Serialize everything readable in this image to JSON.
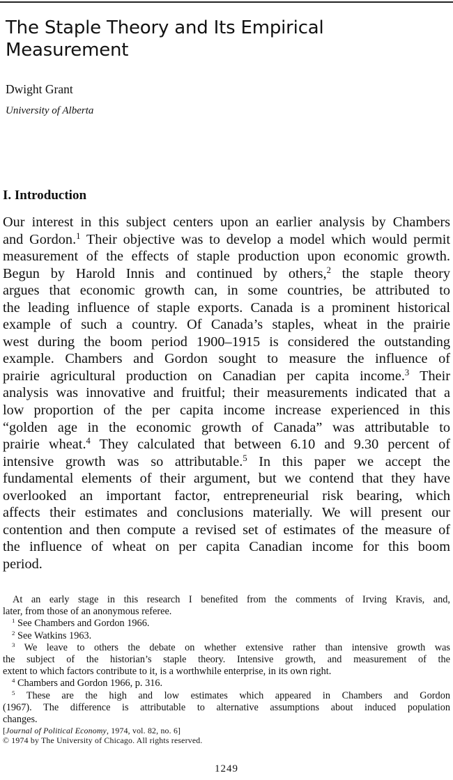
{
  "article": {
    "title_lines": [
      "The Staple Theory and Its Empirical",
      "Measurement"
    ],
    "author": "Dwight Grant",
    "affiliation": "University of Alberta"
  },
  "section": {
    "heading": "I. Introduction",
    "body_lines": [
      "Our interest in this subject centers upon an earlier analysis by Chambers",
      "and Gordon.",
      "1",
      " Their objective was to develop a model which would permit",
      "measurement of the effects of staple production upon economic growth.",
      "Begun by Harold Innis and continued by others,",
      "2",
      " the staple theory",
      "argues that economic growth can, in some countries, be attributed to",
      "the leading influence of staple exports. Canada is a prominent historical",
      "example of such a country. Of Canada’s staples, wheat in the prairie",
      "west during the boom period 1900–1915 is considered the outstanding",
      "example. Chambers and Gordon sought to measure the influence of",
      "prairie agricultural production on Canadian per capita income.",
      "3",
      " Their",
      "analysis was innovative and fruitful; their measurements indicated that a",
      "low proportion of the per capita income increase experienced in this",
      "“golden age in the economic growth of Canada” was attributable to",
      "prairie wheat.",
      "4",
      " They calculated that between 6.10 and 9.30 percent of",
      "intensive growth was so attributable.",
      "5",
      " In this paper we accept the",
      "fundamental elements of their argument, but we contend that they have",
      "overlooked an important factor, entrepreneurial risk bearing, which",
      "affects their estimates and conclusions materially. We will present our",
      "contention and then compute a revised set of estimates of the measure of",
      "the influence of wheat on per capita Canadian income for this boom",
      "period."
    ]
  },
  "footnotes": {
    "ack_lines": [
      "At an early stage in this research I benefited from the comments of Irving Kravis, and,",
      "later, from those of an anonymous referee."
    ],
    "notes": [
      {
        "mark": "1",
        "lines": [
          " See Chambers and Gordon 1966."
        ]
      },
      {
        "mark": "2",
        "lines": [
          " See Watkins 1963."
        ]
      },
      {
        "mark": "3",
        "lines": [
          " We leave to others the debate on whether extensive rather than intensive growth was",
          "the subject of the historian’s staple theory. Intensive growth, and measurement of the",
          "extent to which factors contribute to it, is a worthwhile enterprise, in its own right."
        ]
      },
      {
        "mark": "4",
        "lines": [
          " Chambers and Gordon 1966, p. 316."
        ]
      },
      {
        "mark": "5",
        "lines": [
          " These are the high and low estimates which appeared in Chambers and Gordon",
          "(1967). The difference is attributable to alternative assumptions about induced population",
          "changes."
        ]
      }
    ]
  },
  "citation": {
    "open": "[",
    "journal": "Journal of Political Economy",
    "rest": ", 1974, vol. 82, no. 6]",
    "copyright": "© 1974 by The University of Chicago. All rights reserved."
  },
  "page_number": "1249"
}
